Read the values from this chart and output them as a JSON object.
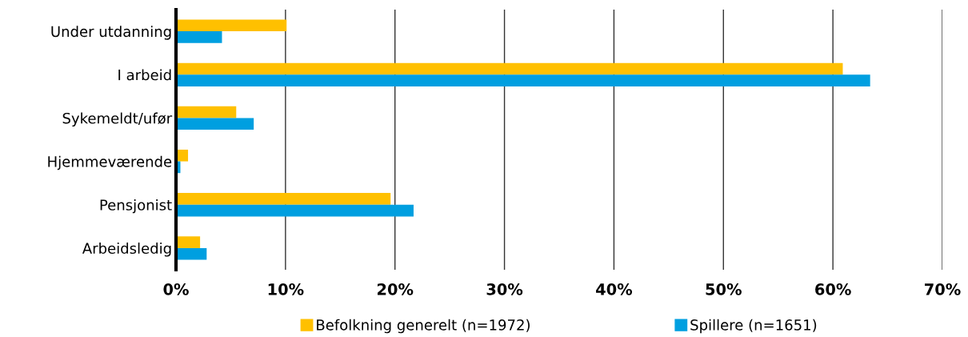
{
  "chart_data": {
    "type": "bar",
    "orientation": "horizontal",
    "categories": [
      "Under utdanning",
      "I arbeid",
      "Sykemeldt/ufør",
      "Hjemmeværende",
      "Pensjonist",
      "Arbeidsledig"
    ],
    "series": [
      {
        "name": "Befolkning generelt (n=1972)",
        "color": "#ffc000",
        "values": [
          10.1,
          60.9,
          5.5,
          1.1,
          19.6,
          2.2
        ]
      },
      {
        "name": "Spillere (n=1651)",
        "color": "#009fe0",
        "values": [
          4.2,
          63.4,
          7.1,
          0.4,
          21.7,
          2.8
        ]
      }
    ],
    "xlim": [
      0,
      70
    ],
    "xticks": [
      {
        "value": 0,
        "label": "0%"
      },
      {
        "value": 10,
        "label": "10%"
      },
      {
        "value": 20,
        "label": "20%"
      },
      {
        "value": 30,
        "label": "30%"
      },
      {
        "value": 40,
        "label": "40%"
      },
      {
        "value": 50,
        "label": "50%"
      },
      {
        "value": 60,
        "label": "60%"
      },
      {
        "value": 70,
        "label": "70%"
      }
    ],
    "grid": "x",
    "legend": "bottom"
  }
}
